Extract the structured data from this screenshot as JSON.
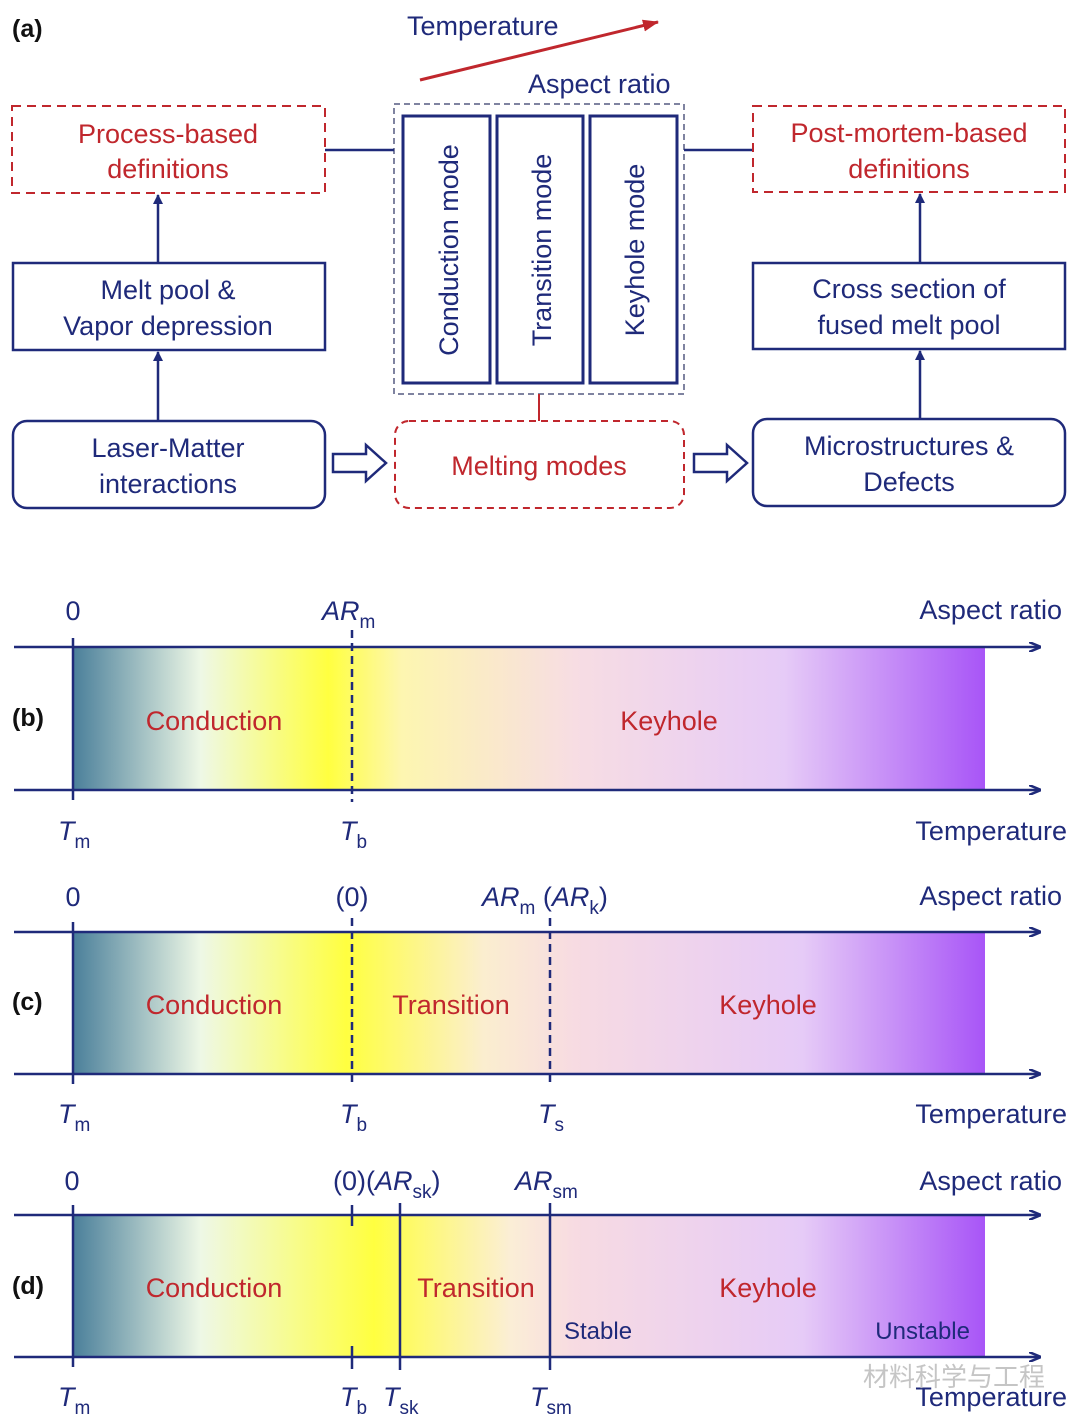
{
  "colors": {
    "navy": "#1f2a7a",
    "red": "#c0272d",
    "teal": "#4a7f9a",
    "yellow": "#ffff33",
    "purple": "#a855f7"
  },
  "panel_a": {
    "label": "(a)",
    "temperature": "Temperature",
    "aspect_ratio": "Aspect ratio",
    "process_based": [
      "Process-based",
      "definitions"
    ],
    "melt_pool": [
      "Melt pool &",
      "Vapor depression"
    ],
    "laser_matter": [
      "Laser-Matter",
      "interactions"
    ],
    "modes": [
      "Conduction mode",
      "Transition mode",
      "Keyhole mode"
    ],
    "melting_modes": "Melting modes",
    "post_mortem": [
      "Post-mortem-based",
      "definitions"
    ],
    "cross_section": [
      "Cross section of",
      "fused melt pool"
    ],
    "microstructures": [
      "Microstructures &",
      "Defects"
    ]
  },
  "panel_b": {
    "label": "(b)",
    "top": {
      "zero": "0",
      "ar": "AR",
      "ar_sub": "m",
      "axis": "Aspect ratio"
    },
    "bottom": {
      "tm": "T",
      "tm_sub": "m",
      "tb": "T",
      "tb_sub": "b",
      "axis": "Temperature"
    },
    "regions": [
      "Conduction",
      "Keyhole"
    ]
  },
  "panel_c": {
    "label": "(c)",
    "top": {
      "zero": "0",
      "zero2": "(0)",
      "ar": "AR",
      "ar_sub": "m",
      "ark_open": " (",
      "ark": "AR",
      "ark_sub": "k",
      "ark_close": ")",
      "axis": "Aspect ratio"
    },
    "bottom": {
      "tm": "T",
      "tm_sub": "m",
      "tb": "T",
      "tb_sub": "b",
      "ts": "T",
      "ts_sub": "s",
      "axis": "Temperature"
    },
    "regions": [
      "Conduction",
      "Transition",
      "Keyhole"
    ]
  },
  "panel_d": {
    "label": "(d)",
    "top": {
      "zero": "0",
      "zero2": "(0)(",
      "arsk": "AR",
      "arsk_sub": "sk",
      "arsk_close": ")",
      "arsm": "AR",
      "arsm_sub": "sm",
      "axis": "Aspect ratio"
    },
    "bottom": {
      "tm": "T",
      "tm_sub": "m",
      "tb": "T",
      "tb_sub": "b",
      "tsk": "T",
      "tsk_sub": "sk",
      "tsm": "T",
      "tsm_sub": "sm",
      "axis": "Temperature"
    },
    "regions": [
      "Conduction",
      "Transition",
      "Keyhole"
    ],
    "stable": "Stable",
    "unstable": "Unstable"
  },
  "watermark": "材料科学与工程"
}
